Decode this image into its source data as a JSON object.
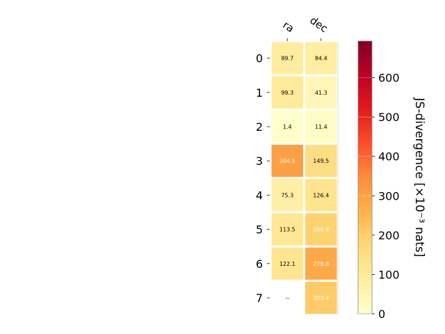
{
  "chart_data": {
    "type": "heatmap",
    "columns": [
      "ra",
      "dec"
    ],
    "rows": [
      "0",
      "1",
      "2",
      "3",
      "4",
      "5",
      "6",
      "7"
    ],
    "values": [
      [
        89.7,
        84.4
      ],
      [
        99.3,
        41.3
      ],
      [
        1.4,
        11.4
      ],
      [
        304.5,
        149.5
      ],
      [
        75.3,
        126.4
      ],
      [
        113.5,
        186.8
      ],
      [
        122.1,
        279.8
      ],
      [
        null,
        203.4
      ]
    ],
    "cell_labels": [
      [
        "89.7",
        "84.4"
      ],
      [
        "99.3",
        "41.3"
      ],
      [
        "1.4",
        "11.4"
      ],
      [
        "304.5",
        "149.5"
      ],
      [
        "75.3",
        "126.4"
      ],
      [
        "113.5",
        "186.8"
      ],
      [
        "122.1",
        "279.8"
      ],
      [
        "--",
        "203.4"
      ]
    ],
    "colorbar": {
      "label": "JS-divergence [×10⁻³ nats]",
      "min": 0,
      "max": 693,
      "ticks": [
        0,
        100,
        200,
        300,
        400,
        500,
        600
      ],
      "tick_labels": [
        "0",
        "100",
        "200",
        "300",
        "400",
        "500",
        "600"
      ],
      "colormap": "YlOrRd"
    },
    "grid": false,
    "title": ""
  }
}
